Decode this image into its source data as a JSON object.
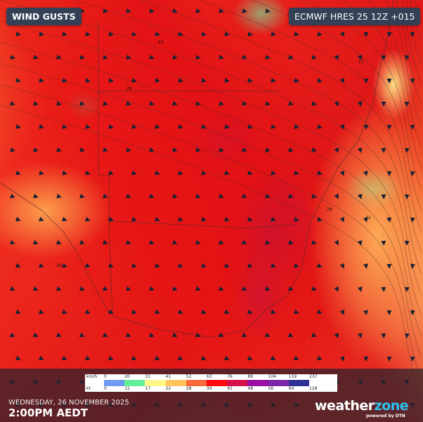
{
  "header": {
    "title": "WIND GUSTS",
    "model": "ECMWF HRES 25 12Z +015"
  },
  "legend": {
    "unit_kmh": "km/h",
    "unit_kt": "kt",
    "kmh_values": [
      "0",
      "20",
      "31",
      "41",
      "52",
      "63",
      "76",
      "89",
      "104",
      "119",
      "237"
    ],
    "kt_values": [
      "0",
      "11",
      "17",
      "22",
      "28",
      "34",
      "41",
      "48",
      "56",
      "64",
      "128"
    ],
    "colors": [
      "#6f9bf5",
      "#63ef98",
      "#fff78a",
      "#ffc45c",
      "#ff6a3a",
      "#fc0a10",
      "#d5104a",
      "#9b0fa6",
      "#7a26a8",
      "#2f3196"
    ]
  },
  "footer": {
    "date": "WEDNESDAY, 26 NOVEMBER 2025",
    "time": "2:00PM AEDT"
  },
  "brand": {
    "name_a": "weather",
    "name_b": "zone",
    "tagline": "powered by DTN"
  },
  "map": {
    "field": "wind gust speed",
    "isoline_labels": [
      "28",
      "22",
      "17",
      "34",
      "28",
      "22"
    ]
  }
}
